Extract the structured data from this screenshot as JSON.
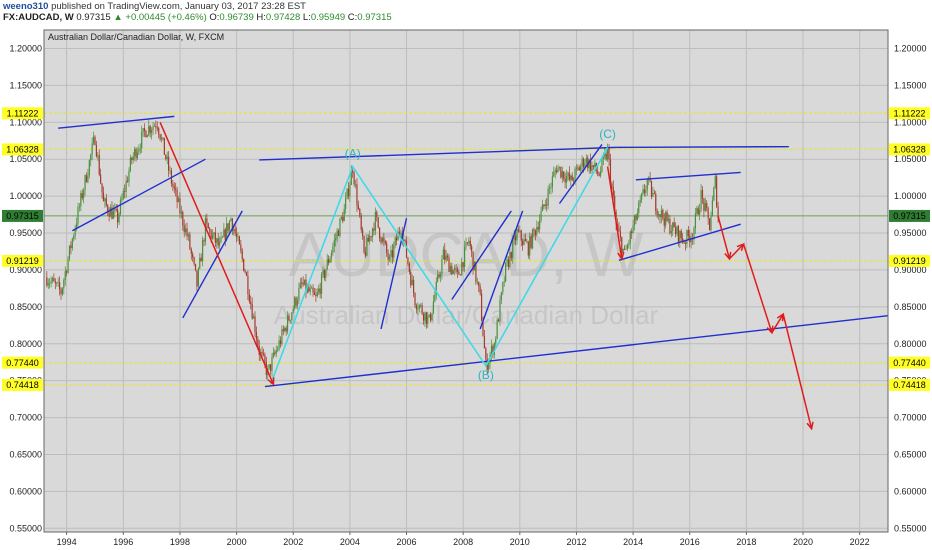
{
  "header": {
    "author": "weeno310",
    "published": "published on TradingView.com, January 03, 2017 23:28 EST",
    "symbol": "FX:AUDCAD, W",
    "last": "0.97315",
    "change": "+0.00445 (+0.46%)",
    "o_label": "O:",
    "o": "0.96739",
    "h_label": "H:",
    "h": "0.97428",
    "l_label": "L:",
    "l": "0.95949",
    "c_label": "C:",
    "c": "0.97315"
  },
  "chart_data": {
    "type": "line",
    "title": "Australian Dollar/Canadian Dollar, W, FXCM",
    "watermark_big": "AUDCAD, W",
    "watermark_small": "Australian Dollar/Canadian Dollar",
    "xlabel": "",
    "ylabel": "",
    "xlim": [
      1993.2,
      2023.0
    ],
    "ylim": [
      0.545,
      1.225
    ],
    "x_ticks": [
      1994,
      1996,
      1998,
      2000,
      2002,
      2004,
      2006,
      2008,
      2010,
      2012,
      2014,
      2016,
      2018,
      2020,
      2022
    ],
    "x_tick_labels": [
      "1994",
      "1996",
      "1998",
      "2000",
      "2002",
      "2004",
      "2006",
      "2008",
      "2010",
      "2012",
      "2014",
      "2016",
      "2018",
      "2020",
      "2022"
    ],
    "y_ticks": [
      0.55,
      0.6,
      0.65,
      0.7,
      0.75,
      0.8,
      0.85,
      0.9,
      0.95,
      1.0,
      1.05,
      1.1,
      1.15,
      1.2
    ],
    "y_tick_labels": [
      "0.55000",
      "0.60000",
      "0.65000",
      "0.70000",
      "0.75000",
      "0.80000",
      "0.85000",
      "0.90000",
      "0.95000",
      "1.00000",
      "1.05000",
      "1.10000",
      "1.15000",
      "1.20000"
    ],
    "grid": true,
    "price_anchors": {
      "x": [
        1993.3,
        1993.8,
        1994.3,
        1995.0,
        1995.3,
        1995.8,
        1996.3,
        1996.8,
        1997.2,
        1997.7,
        1998.3,
        1998.6,
        1998.9,
        1999.4,
        1999.8,
        2000.3,
        2000.8,
        2001.1,
        2001.3,
        2001.8,
        2002.3,
        2002.8,
        2003.3,
        2003.8,
        2004.1,
        2004.5,
        2004.9,
        2005.4,
        2005.8,
        2006.3,
        2006.8,
        2007.3,
        2007.8,
        2008.2,
        2008.6,
        2008.8,
        2009.1,
        2009.5,
        2009.9,
        2010.3,
        2010.8,
        2011.3,
        2011.8,
        2012.3,
        2012.8,
        2013.1,
        2013.4,
        2013.7,
        2014.1,
        2014.5,
        2014.9,
        2015.3,
        2015.8,
        2016.1,
        2016.4,
        2016.7,
        2016.9,
        2017.0
      ],
      "y": [
        0.89,
        0.87,
        0.96,
        1.08,
        0.99,
        0.97,
        1.05,
        1.09,
        1.1,
        1.02,
        0.94,
        0.88,
        0.96,
        0.93,
        0.97,
        0.9,
        0.79,
        0.76,
        0.78,
        0.83,
        0.88,
        0.86,
        0.92,
        0.98,
        1.04,
        0.92,
        0.97,
        0.91,
        0.96,
        0.86,
        0.83,
        0.92,
        0.89,
        0.94,
        0.86,
        0.77,
        0.8,
        0.9,
        0.95,
        0.93,
        0.98,
        1.04,
        1.02,
        1.05,
        1.03,
        1.06,
        0.96,
        0.92,
        0.97,
        1.02,
        0.98,
        0.96,
        0.94,
        0.95,
        1.0,
        0.96,
        1.02,
        0.973
      ]
    },
    "trend_lines": [
      {
        "x": [
          1993.7,
          1997.8
        ],
        "y": [
          1.092,
          1.108
        ]
      },
      {
        "x": [
          1994.2,
          1998.9
        ],
        "y": [
          0.953,
          1.05
        ]
      },
      {
        "x": [
          2001.0,
          2023.0
        ],
        "y": [
          0.742,
          0.838
        ]
      },
      {
        "x": [
          2000.8,
          2013.4
        ],
        "y": [
          1.049,
          1.066
        ]
      },
      {
        "x": [
          2013.4,
          2019.5
        ],
        "y": [
          1.066,
          1.067
        ]
      },
      {
        "x": [
          2014.1,
          2017.8
        ],
        "y": [
          1.022,
          1.032
        ]
      },
      {
        "x": [
          2013.5,
          2017.8
        ],
        "y": [
          0.913,
          0.962
        ]
      },
      {
        "x": [
          1998.1,
          2000.2
        ],
        "y": [
          0.835,
          0.98
        ]
      },
      {
        "x": [
          2005.1,
          2006.0
        ],
        "y": [
          0.82,
          0.97
        ]
      },
      {
        "x": [
          2007.6,
          2009.7
        ],
        "y": [
          0.86,
          0.98
        ]
      },
      {
        "x": [
          2008.6,
          2010.1
        ],
        "y": [
          0.82,
          0.98
        ]
      },
      {
        "x": [
          2011.4,
          2012.9
        ],
        "y": [
          0.99,
          1.07
        ]
      }
    ],
    "wave_path": {
      "x": [
        2001.2,
        2004.1,
        2008.8,
        2013.1
      ],
      "y": [
        0.745,
        1.04,
        0.77,
        1.066
      ]
    },
    "wave_labels": [
      {
        "text": "(A)",
        "x": 2004.1,
        "y": 1.052
      },
      {
        "text": "(B)",
        "x": 2008.8,
        "y": 0.752
      },
      {
        "text": "(C)",
        "x": 2013.1,
        "y": 1.079
      }
    ],
    "projection_arrows": [
      {
        "x": [
          1997.3,
          2001.3
        ],
        "y": [
          1.1,
          0.745
        ]
      },
      {
        "x": [
          2013.1,
          2013.6
        ],
        "y": [
          1.04,
          0.915
        ]
      },
      {
        "x": [
          2017.0,
          2017.4
        ],
        "y": [
          0.973,
          0.915
        ]
      },
      {
        "x": [
          2017.4,
          2017.9
        ],
        "y": [
          0.915,
          0.935
        ]
      },
      {
        "x": [
          2017.9,
          2018.9
        ],
        "y": [
          0.935,
          0.815
        ]
      },
      {
        "x": [
          2018.9,
          2019.3
        ],
        "y": [
          0.815,
          0.84
        ]
      },
      {
        "x": [
          2019.3,
          2020.3
        ],
        "y": [
          0.84,
          0.685
        ]
      }
    ],
    "levels": [
      {
        "value": 1.11222,
        "label": "1.11222",
        "type": "yellow"
      },
      {
        "value": 1.06328,
        "label": "1.06328",
        "type": "yellow"
      },
      {
        "value": 0.97315,
        "label": "0.97315",
        "type": "green"
      },
      {
        "value": 0.91219,
        "label": "0.91219",
        "type": "yellow"
      },
      {
        "value": 0.7744,
        "label": "0.77440",
        "type": "yellow"
      },
      {
        "value": 0.74418,
        "label": "0.74418",
        "type": "yellow"
      }
    ],
    "colors": {
      "background": "#d9d9d9",
      "grid": "#bdbdbd",
      "candles_up": "#4a8f3a",
      "candles_down": "#a33a2a",
      "trend_line": "#1f2fd0",
      "wave": "#40d9e6",
      "projection": "#e11b1b",
      "level_line": "#e8e81e",
      "level_badge": "#ffff26",
      "last_badge": "#2f7d32",
      "last_line": "#6f9f5a"
    }
  }
}
